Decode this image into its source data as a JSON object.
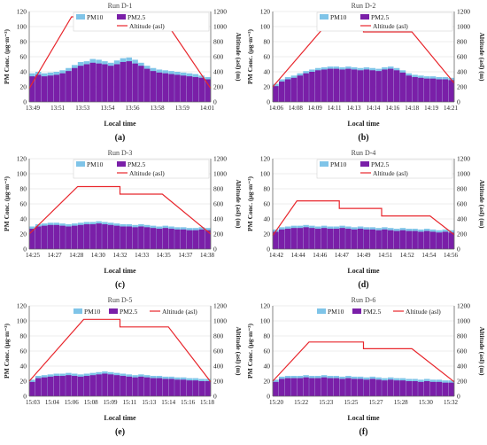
{
  "colors": {
    "pm10": "#7fc4e8",
    "pm25": "#7a1fa8",
    "altitude": "#e8262c",
    "grid": "#dcdcdc",
    "axis": "#666666"
  },
  "chart_data": [
    {
      "type": "bar",
      "title": "Run D-1",
      "panel_label": "(a)",
      "xlabel": "Local time",
      "ylabel": "PM Conc. (μg·m⁻³)",
      "y2label": "Altitude (asl) (m)",
      "ylim": [
        0,
        120
      ],
      "y2lim": [
        0,
        1200
      ],
      "yticks": [
        0,
        20,
        40,
        60,
        80,
        100,
        120
      ],
      "y2ticks": [
        0,
        200,
        400,
        600,
        800,
        1000,
        1200
      ],
      "legend": {
        "position": "top-right",
        "entries": [
          "PM10",
          "PM2.5",
          "Altitude (asl)"
        ]
      },
      "grid": true,
      "x_tick_labels": [
        "13:49",
        "13:51",
        "13:53",
        "13:54",
        "13:56",
        "13:58",
        "13:59",
        "14:01"
      ],
      "pm10": [
        38,
        40,
        38,
        39,
        40,
        42,
        45,
        49,
        53,
        54,
        57,
        56,
        54,
        52,
        55,
        58,
        59,
        56,
        52,
        48,
        45,
        43,
        42,
        41,
        40,
        39,
        38,
        37,
        35,
        33
      ],
      "pm25": [
        34,
        36,
        34,
        35,
        36,
        38,
        41,
        45,
        48,
        50,
        52,
        51,
        50,
        48,
        50,
        53,
        54,
        51,
        48,
        44,
        41,
        39,
        38,
        37,
        36,
        35,
        34,
        33,
        32,
        30
      ],
      "altitude": {
        "x": [
          0,
          7,
          22,
          30
        ],
        "y": [
          180,
          1130,
          1130,
          180
        ]
      }
    },
    {
      "type": "bar",
      "title": "Run D-2",
      "panel_label": "(b)",
      "xlabel": "Local time",
      "ylabel": "PM Conc. (μg·m⁻³)",
      "y2label": "Altitude (asl) (m)",
      "ylim": [
        0,
        120
      ],
      "y2lim": [
        0,
        1200
      ],
      "yticks": [
        0,
        20,
        40,
        60,
        80,
        100,
        120
      ],
      "y2ticks": [
        0,
        200,
        400,
        600,
        800,
        1000,
        1200
      ],
      "legend": {
        "position": "top-right",
        "entries": [
          "PM10",
          "PM2.5",
          "Altitude (asl)"
        ]
      },
      "grid": true,
      "x_tick_labels": [
        "14:06",
        "14:08",
        "14:09",
        "14:11",
        "14:13",
        "14:14",
        "14:16",
        "14:18",
        "14:19",
        "14:21"
      ],
      "pm10": [
        24,
        30,
        33,
        35,
        38,
        41,
        43,
        45,
        46,
        47,
        47,
        46,
        47,
        46,
        45,
        46,
        45,
        44,
        46,
        47,
        45,
        42,
        38,
        36,
        35,
        34,
        34,
        33,
        33,
        32
      ],
      "pm25": [
        21,
        27,
        30,
        32,
        35,
        38,
        40,
        42,
        43,
        44,
        44,
        43,
        44,
        43,
        42,
        43,
        42,
        41,
        43,
        44,
        42,
        39,
        35,
        33,
        32,
        31,
        31,
        30,
        30,
        29
      ],
      "altitude": {
        "x": [
          0,
          9,
          15,
          15,
          23,
          30
        ],
        "y": [
          200,
          1040,
          1040,
          930,
          930,
          250
        ]
      }
    },
    {
      "type": "bar",
      "title": "Run D-3",
      "panel_label": "(c)",
      "xlabel": "Local time",
      "ylabel": "PM Conc. (μg·m⁻³)",
      "y2label": "Altitude (asl) (m)",
      "ylim": [
        0,
        120
      ],
      "y2lim": [
        0,
        1200
      ],
      "yticks": [
        0,
        20,
        40,
        60,
        80,
        100,
        120
      ],
      "y2ticks": [
        0,
        200,
        400,
        600,
        800,
        1000,
        1200
      ],
      "legend": {
        "position": "top-right",
        "entries": [
          "PM10",
          "PM2.5",
          "Altitude (asl)"
        ]
      },
      "grid": true,
      "x_tick_labels": [
        "14:25",
        "14:27",
        "14:28",
        "14:30",
        "14:32",
        "14:33",
        "14:35",
        "14:37",
        "14:38"
      ],
      "pm10": [
        30,
        33,
        34,
        35,
        35,
        34,
        33,
        34,
        35,
        36,
        36,
        37,
        36,
        35,
        34,
        33,
        33,
        32,
        33,
        32,
        31,
        30,
        31,
        30,
        29,
        29,
        28,
        28,
        29,
        28
      ],
      "pm25": [
        27,
        30,
        31,
        32,
        32,
        31,
        30,
        31,
        32,
        33,
        33,
        34,
        33,
        32,
        31,
        30,
        30,
        29,
        30,
        29,
        28,
        27,
        28,
        27,
        26,
        26,
        25,
        25,
        26,
        25
      ],
      "altitude": {
        "x": [
          0,
          8,
          15,
          15,
          22,
          30
        ],
        "y": [
          200,
          830,
          830,
          730,
          730,
          200
        ]
      }
    },
    {
      "type": "bar",
      "title": "Run D-4",
      "panel_label": "(d)",
      "xlabel": "Local time",
      "ylabel": "PM Conc. (μg·m⁻³)",
      "y2label": "Altitude (asl) (m)",
      "ylim": [
        0,
        120
      ],
      "y2lim": [
        0,
        1200
      ],
      "yticks": [
        0,
        20,
        40,
        60,
        80,
        100,
        120
      ],
      "y2ticks": [
        0,
        200,
        400,
        600,
        800,
        1000,
        1200
      ],
      "legend": {
        "position": "top-right",
        "entries": [
          "PM10",
          "PM2.5",
          "Altitude (asl)"
        ]
      },
      "grid": true,
      "x_tick_labels": [
        "14:42",
        "14:44",
        "14:46",
        "14:47",
        "14:49",
        "14:51",
        "14:52",
        "14:54",
        "14:56"
      ],
      "pm10": [
        26,
        29,
        30,
        31,
        31,
        32,
        31,
        30,
        31,
        30,
        30,
        31,
        30,
        29,
        30,
        29,
        29,
        28,
        29,
        28,
        27,
        28,
        27,
        27,
        26,
        27,
        26,
        25,
        26,
        25
      ],
      "pm25": [
        23,
        26,
        27,
        28,
        28,
        29,
        28,
        27,
        28,
        27,
        27,
        28,
        27,
        26,
        27,
        26,
        26,
        25,
        26,
        25,
        24,
        25,
        24,
        24,
        23,
        24,
        23,
        22,
        23,
        22
      ],
      "altitude": {
        "x": [
          0,
          4,
          11,
          11,
          18,
          18,
          26,
          30
        ],
        "y": [
          180,
          640,
          640,
          540,
          540,
          440,
          440,
          190
        ]
      }
    },
    {
      "type": "bar",
      "title": "Run D-5",
      "panel_label": "(e)",
      "xlabel": "Local time",
      "ylabel": "PM Conc. (μg·m⁻³)",
      "y2label": "Altitude (asl) (m)",
      "ylim": [
        0,
        120
      ],
      "y2lim": [
        0,
        1200
      ],
      "yticks": [
        0,
        20,
        40,
        60,
        80,
        100,
        120
      ],
      "y2ticks": [
        0,
        200,
        400,
        600,
        800,
        1000,
        1200
      ],
      "legend": {
        "position": "top-center",
        "entries": [
          "PM10",
          "PM2.5",
          "Altitude (asl)"
        ]
      },
      "grid": true,
      "x_tick_labels": [
        "15:03",
        "15:04",
        "15:06",
        "15:08",
        "15:09",
        "15:11",
        "15:13",
        "15:14",
        "15:16",
        "15:18"
      ],
      "pm10": [
        22,
        27,
        28,
        29,
        30,
        30,
        31,
        30,
        29,
        30,
        31,
        32,
        33,
        32,
        31,
        30,
        29,
        28,
        29,
        28,
        27,
        27,
        26,
        26,
        25,
        25,
        24,
        24,
        23,
        23
      ],
      "pm25": [
        19,
        24,
        25,
        26,
        27,
        27,
        28,
        27,
        26,
        27,
        28,
        29,
        30,
        29,
        28,
        27,
        26,
        25,
        26,
        25,
        24,
        24,
        23,
        23,
        22,
        22,
        21,
        21,
        20,
        20
      ],
      "altitude": {
        "x": [
          0,
          9,
          15,
          15,
          23,
          30
        ],
        "y": [
          200,
          1020,
          1020,
          920,
          920,
          190
        ]
      }
    },
    {
      "type": "bar",
      "title": "Run D-6",
      "panel_label": "(f)",
      "xlabel": "Local time",
      "ylabel": "PM Conc. (μg·m⁻³)",
      "y2label": "Altitude (asl) (m)",
      "ylim": [
        0,
        120
      ],
      "y2lim": [
        0,
        1200
      ],
      "yticks": [
        0,
        20,
        40,
        60,
        80,
        100,
        120
      ],
      "y2ticks": [
        0,
        200,
        400,
        600,
        800,
        1000,
        1200
      ],
      "legend": {
        "position": "top-center",
        "entries": [
          "PM10",
          "PM2.5",
          "Altitude (asl)"
        ]
      },
      "grid": true,
      "x_tick_labels": [
        "15:20",
        "15:22",
        "15:23",
        "15:25",
        "15:27",
        "15:28",
        "15:30",
        "15:32"
      ],
      "pm10": [
        22,
        26,
        27,
        27,
        27,
        28,
        27,
        27,
        28,
        27,
        27,
        26,
        27,
        26,
        26,
        25,
        26,
        25,
        24,
        25,
        24,
        24,
        23,
        23,
        22,
        23,
        22,
        22,
        21,
        21
      ],
      "pm25": [
        19,
        23,
        24,
        24,
        24,
        25,
        24,
        24,
        25,
        24,
        24,
        23,
        24,
        23,
        23,
        22,
        23,
        22,
        21,
        22,
        21,
        21,
        20,
        20,
        19,
        20,
        19,
        19,
        18,
        18
      ],
      "altitude": {
        "x": [
          0,
          6,
          15,
          15,
          23,
          30
        ],
        "y": [
          200,
          720,
          720,
          630,
          630,
          190
        ]
      }
    }
  ]
}
